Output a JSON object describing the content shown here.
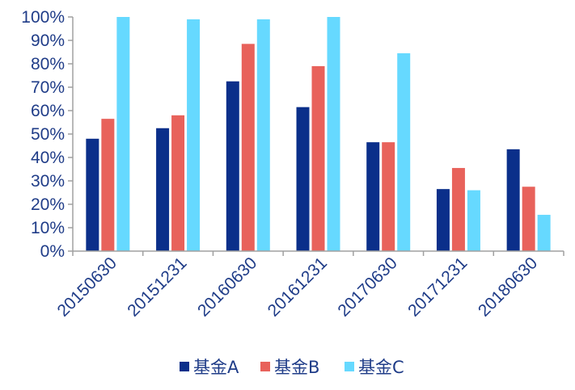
{
  "chart_data": {
    "type": "bar",
    "categories": [
      "20150630",
      "20151231",
      "20160630",
      "20161231",
      "20170630",
      "20171231",
      "20180630"
    ],
    "series": [
      {
        "name": "基金A",
        "color": "#0b2f8a",
        "values": [
          48,
          52.5,
          72.5,
          61.5,
          46.5,
          26.5,
          43.5
        ]
      },
      {
        "name": "基金B",
        "color": "#e8625b",
        "values": [
          56.5,
          58,
          88.5,
          79,
          46.5,
          35.5,
          27.5
        ]
      },
      {
        "name": "基金C",
        "color": "#66d9ff",
        "values": [
          100,
          99,
          99,
          100,
          84.5,
          26,
          15.5
        ]
      }
    ],
    "y_ticks": [
      "0%",
      "10%",
      "20%",
      "30%",
      "40%",
      "50%",
      "60%",
      "70%",
      "80%",
      "90%",
      "100%"
    ],
    "ylim": [
      0,
      100
    ],
    "legend_position": "bottom",
    "grid": false,
    "title": "",
    "xlabel": "",
    "ylabel": ""
  }
}
